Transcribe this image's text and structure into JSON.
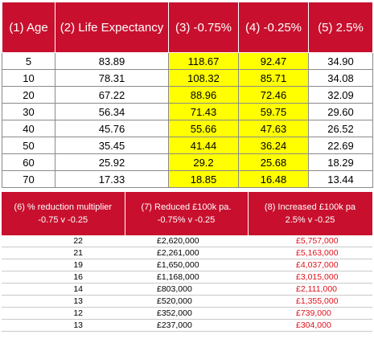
{
  "top_table": {
    "headers": [
      "(1) Age",
      "(2) Life Expectancy",
      "(3) -0.75%",
      "(4) -0.25%",
      "(5) 2.5%"
    ],
    "rows": [
      [
        "5",
        "83.89",
        "118.67",
        "92.47",
        "34.90"
      ],
      [
        "10",
        "78.31",
        "108.32",
        "85.71",
        "34.08"
      ],
      [
        "20",
        "67.22",
        "88.96",
        "72.46",
        "32.09"
      ],
      [
        "30",
        "56.34",
        "71.43",
        "59.75",
        "29.60"
      ],
      [
        "40",
        "45.76",
        "55.66",
        "47.63",
        "26.52"
      ],
      [
        "50",
        "35.45",
        "41.44",
        "36.24",
        "22.69"
      ],
      [
        "60",
        "25.92",
        "29.2",
        "25.68",
        "18.29"
      ],
      [
        "70",
        "17.33",
        "18.85",
        "16.48",
        "13.44"
      ]
    ],
    "highlight_color": "#ffff00",
    "header_color": "#c8102e"
  },
  "bottom_table": {
    "headers": [
      [
        "(6) % reduction multiplier",
        "-0.75 v -0.25"
      ],
      [
        "(7) Reduced  £100k pa.",
        "-0.75% v -0.25"
      ],
      [
        "(8) Increased £100k pa",
        "2.5% v -0.25"
      ]
    ],
    "rows": [
      [
        "22",
        "£2,620,000",
        "£5,757,000"
      ],
      [
        "21",
        "£2,261,000",
        "£5,163,000"
      ],
      [
        "19",
        "£1,650,000",
        "£4,037,000"
      ],
      [
        "16",
        "£1,168,000",
        "£3,015,000"
      ],
      [
        "14",
        "£803,000",
        "£2,111,000"
      ],
      [
        "13",
        "£520,000",
        "£1,355,000"
      ],
      [
        "12",
        "£352,000",
        "£739,000"
      ],
      [
        "13",
        "£237,000",
        "£304,000"
      ]
    ],
    "increased_text_color": "#e0101a"
  }
}
